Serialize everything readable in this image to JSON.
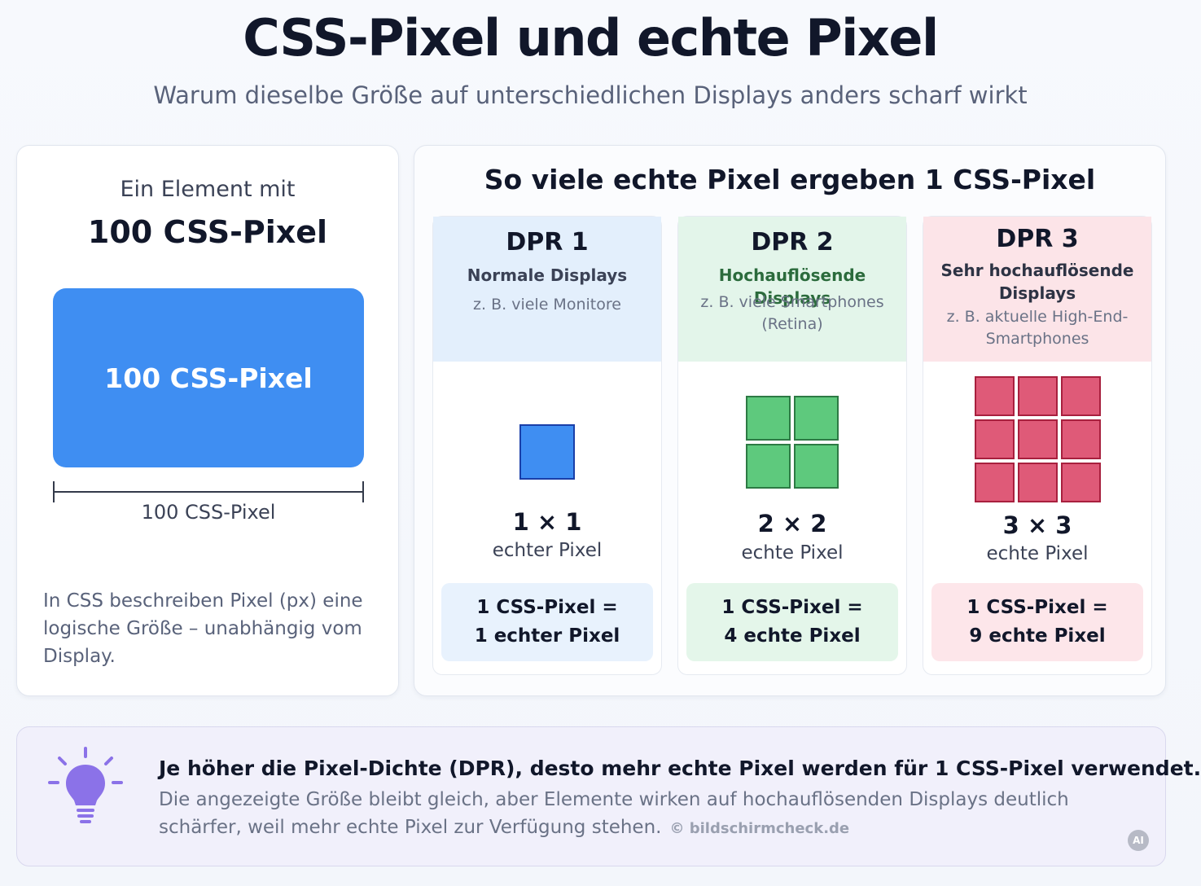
{
  "header": {
    "title": "CSS-Pixel und echte Pixel",
    "subtitle": "Warum dieselbe Größe auf unterschiedlichen Displays anders scharf wirkt"
  },
  "left_panel": {
    "intro": "Ein Element mit",
    "heading": "100 CSS-Pixel",
    "box_label": "100 CSS-Pixel",
    "ruler_label": "100 CSS-Pixel",
    "description": "In CSS beschreiben Pixel (px) eine logische Größe – unabhängig vom Display."
  },
  "right_panel": {
    "title": "So viele echte Pixel ergeben 1 CSS-Pixel",
    "columns": [
      {
        "dpr": "DPR 1",
        "type": "Normale Displays",
        "example": "z. B. viele Monitore",
        "grid_size": 1,
        "count": "1 × 1",
        "unit": "echter Pixel",
        "eq_line1": "1 CSS-Pixel =",
        "eq_line2": "1 echter Pixel",
        "pixel_fill": "#3f8ef2",
        "pixel_border": "#1a3fa8"
      },
      {
        "dpr": "DPR 2",
        "type": "Hochauflösende Displays",
        "example": "z. B. viele Smartphones (Retina)",
        "grid_size": 2,
        "count": "2 × 2",
        "unit": "echte Pixel",
        "eq_line1": "1 CSS-Pixel =",
        "eq_line2": "4 echte Pixel",
        "pixel_fill": "#5ec97d",
        "pixel_border": "#2d7a44"
      },
      {
        "dpr": "DPR 3",
        "type": "Sehr hochauflösende Displays",
        "example": "z. B. aktuelle High-End-Smartphones",
        "grid_size": 3,
        "count": "3 × 3",
        "unit": "echte Pixel",
        "eq_line1": "1 CSS-Pixel =",
        "eq_line2": "9 echte Pixel",
        "pixel_fill": "#df5a78",
        "pixel_border": "#a8203e"
      }
    ]
  },
  "footer": {
    "icon": "lightbulb-icon",
    "main": "Je höher die Pixel-Dichte (DPR), desto mehr echte Pixel werden für 1 CSS-Pixel verwendet.",
    "sub": "Die angezeigte Größe bleibt gleich, aber Elemente wirken auf hochauflösenden Displays deutlich schärfer, weil mehr echte Pixel zur Verfügung stehen.",
    "credit": "© bildschirmcheck.de",
    "badge": "AI"
  },
  "colors": {
    "accent_blue": "#3f8ef2",
    "bulb": "#8b72e8"
  }
}
